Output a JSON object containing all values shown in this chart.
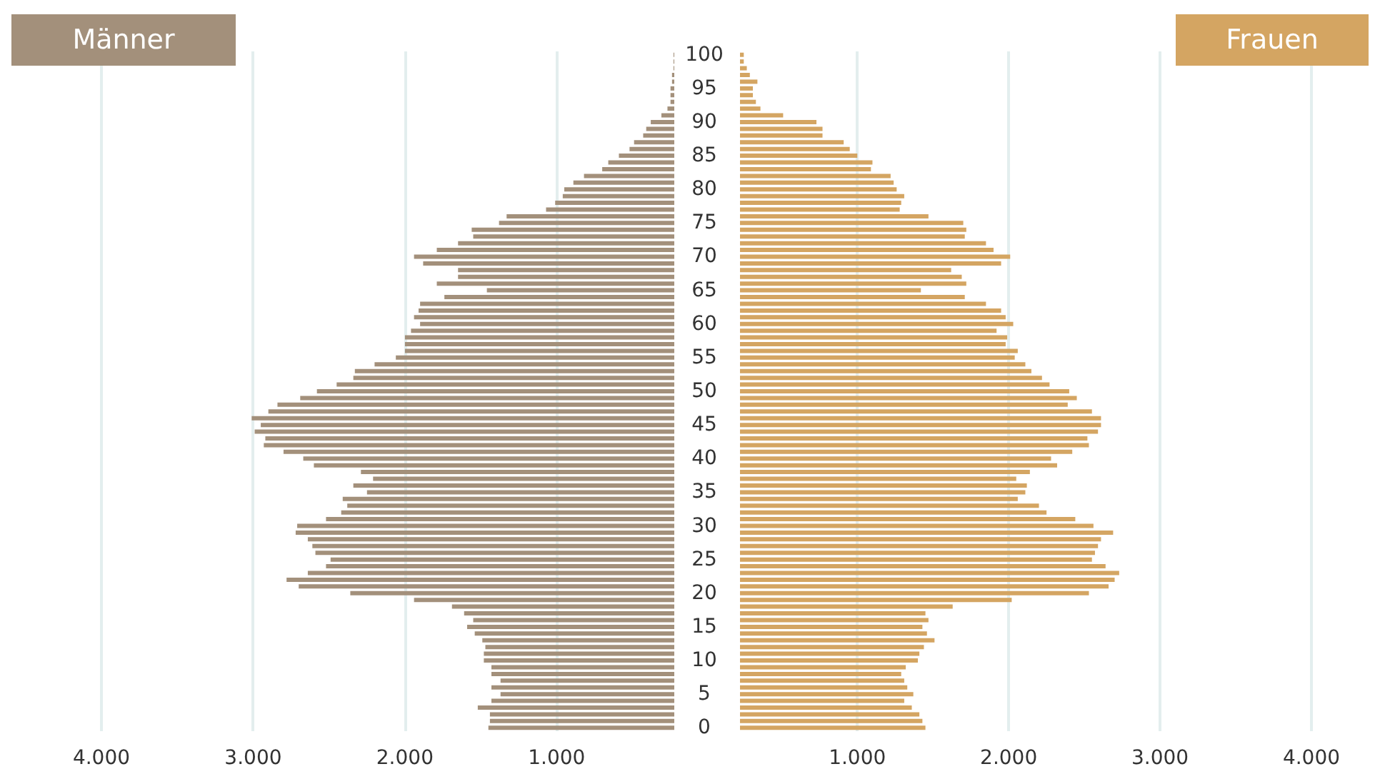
{
  "chart_data": [
    {
      "type": "bar",
      "orientation": "horizontal",
      "tick_labels": "x",
      "grid": "x",
      "categories": [
        "100",
        null,
        null,
        null,
        null,
        "95",
        null,
        null,
        null,
        null,
        "90",
        null,
        null,
        null,
        null,
        "85",
        null,
        null,
        null,
        null,
        "80",
        null,
        null,
        null,
        null,
        "75",
        null,
        null,
        null,
        null,
        "70",
        null,
        null,
        null,
        null,
        "65",
        null,
        null,
        null,
        null,
        "60",
        null,
        null,
        null,
        null,
        "55",
        null,
        null,
        null,
        null,
        "50",
        null,
        null,
        null,
        null,
        "45",
        null,
        null,
        null,
        null,
        "40",
        null,
        null,
        null,
        null,
        "35",
        null,
        null,
        null,
        null,
        "30",
        null,
        null,
        null,
        null,
        "25",
        null,
        null,
        null,
        null,
        "20",
        null,
        null,
        null,
        null,
        "15",
        null,
        null,
        null,
        null,
        "10",
        null,
        null,
        null,
        null,
        "5",
        null,
        null,
        null,
        null,
        "0"
      ],
      "xlim": [
        4000,
        225
      ],
      "xticks": [
        {
          "value": 4000,
          "label": "4.000"
        },
        {
          "value": 3000,
          "label": "3.000"
        },
        {
          "value": 2000,
          "label": "2.000"
        },
        {
          "value": 1000,
          "label": "1.000"
        }
      ],
      "series": [
        {
          "name": "Männer",
          "color": "#a3907b",
          "values": [
            230,
            230,
            230,
            240,
            240,
            250,
            250,
            250,
            270,
            310,
            380,
            410,
            430,
            490,
            520,
            590,
            660,
            700,
            820,
            890,
            950,
            960,
            1010,
            1070,
            1330,
            1380,
            1560,
            1550,
            1650,
            1790,
            1940,
            1880,
            1650,
            1650,
            1790,
            1460,
            1740,
            1900,
            1910,
            1940,
            1900,
            1960,
            2000,
            2000,
            2000,
            2060,
            2200,
            2330,
            2340,
            2450,
            2580,
            2690,
            2840,
            2900,
            3010,
            2950,
            2990,
            2920,
            2930,
            2800,
            2670,
            2600,
            2290,
            2210,
            2340,
            2250,
            2410,
            2380,
            2420,
            2520,
            2710,
            2720,
            2640,
            2610,
            2590,
            2490,
            2520,
            2640,
            2780,
            2700,
            2360,
            1940,
            1690,
            1610,
            1550,
            1590,
            1540,
            1490,
            1470,
            1480,
            1480,
            1430,
            1430,
            1370,
            1430,
            1370,
            1430,
            1520,
            1440,
            1440,
            1450
          ]
        }
      ]
    },
    {
      "type": "bar",
      "orientation": "horizontal",
      "grid": "x",
      "categories": [
        "100",
        null,
        null,
        null,
        null,
        "95",
        null,
        null,
        null,
        null,
        "90",
        null,
        null,
        null,
        null,
        "85",
        null,
        null,
        null,
        null,
        "80",
        null,
        null,
        null,
        null,
        "75",
        null,
        null,
        null,
        null,
        "70",
        null,
        null,
        null,
        null,
        "65",
        null,
        null,
        null,
        null,
        "60",
        null,
        null,
        null,
        null,
        "55",
        null,
        null,
        null,
        null,
        "50",
        null,
        null,
        null,
        null,
        "45",
        null,
        null,
        null,
        null,
        "40",
        null,
        null,
        null,
        null,
        "35",
        null,
        null,
        null,
        null,
        "30",
        null,
        null,
        null,
        null,
        "25",
        null,
        null,
        null,
        null,
        "20",
        null,
        null,
        null,
        null,
        "15",
        null,
        null,
        null,
        null,
        "10",
        null,
        null,
        null,
        null,
        "5",
        null,
        null,
        null,
        null,
        "0"
      ],
      "xlim": [
        225,
        4000
      ],
      "xticks": [
        {
          "value": 1000,
          "label": "1.000"
        },
        {
          "value": 2000,
          "label": "2.000"
        },
        {
          "value": 3000,
          "label": "3.000"
        },
        {
          "value": 4000,
          "label": "4.000"
        }
      ],
      "series": [
        {
          "name": "Frauen",
          "color": "#d4a562",
          "values": [
            250,
            250,
            270,
            290,
            340,
            310,
            310,
            330,
            360,
            510,
            730,
            770,
            770,
            910,
            950,
            1000,
            1100,
            1090,
            1220,
            1240,
            1260,
            1310,
            1290,
            1280,
            1470,
            1700,
            1720,
            1710,
            1850,
            1900,
            2010,
            1950,
            1620,
            1690,
            1720,
            1420,
            1710,
            1850,
            1950,
            1980,
            2030,
            1920,
            1990,
            1980,
            2060,
            2040,
            2110,
            2150,
            2220,
            2270,
            2400,
            2450,
            2390,
            2550,
            2610,
            2610,
            2590,
            2520,
            2530,
            2420,
            2280,
            2320,
            2140,
            2050,
            2120,
            2110,
            2060,
            2200,
            2250,
            2440,
            2560,
            2690,
            2610,
            2590,
            2570,
            2550,
            2640,
            2730,
            2700,
            2660,
            2530,
            2020,
            1630,
            1450,
            1470,
            1430,
            1460,
            1510,
            1440,
            1410,
            1400,
            1320,
            1290,
            1310,
            1330,
            1370,
            1310,
            1360,
            1410,
            1430,
            1450
          ]
        }
      ]
    }
  ]
}
